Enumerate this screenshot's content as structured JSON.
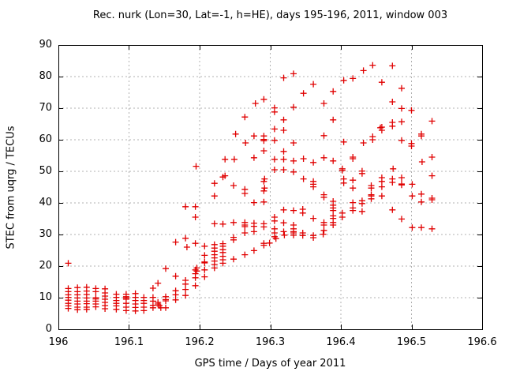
{
  "chart_data": {
    "type": "scatter",
    "title": "Rec. nurk (Lon=30, Lat=-1, h=HE), days 195-196, 2011, window 003",
    "xlabel": "GPS time / Days of year 2011",
    "ylabel": "STEC from uqrg / TECUs",
    "xlim": [
      196,
      196.6
    ],
    "ylim": [
      0,
      90
    ],
    "xticks": [
      196,
      196.1,
      196.2,
      196.3,
      196.4,
      196.5,
      196.6
    ],
    "xtick_labels": [
      "196",
      "196.1",
      "196.2",
      "196.3",
      "196.4",
      "196.5",
      "196.6"
    ],
    "yticks": [
      0,
      10,
      20,
      30,
      40,
      50,
      60,
      70,
      80,
      90
    ],
    "ytick_labels": [
      "0",
      "10",
      "20",
      "30",
      "40",
      "50",
      "60",
      "70",
      "80",
      "90"
    ],
    "grid": true,
    "legend": "none",
    "marker": {
      "shape": "plus",
      "size": 8,
      "color": "#e00000"
    },
    "colors": {
      "axis": "#000000",
      "grid": "#b0b0b0",
      "background": "#ffffff"
    },
    "points": [
      [
        196.014,
        20.9
      ],
      [
        196.014,
        12.9
      ],
      [
        196.014,
        11.9
      ],
      [
        196.014,
        10.9
      ],
      [
        196.014,
        10.1
      ],
      [
        196.014,
        9.2
      ],
      [
        196.014,
        8.2
      ],
      [
        196.014,
        7.4
      ],
      [
        196.014,
        6.6
      ],
      [
        196.027,
        13.2
      ],
      [
        196.027,
        11.9
      ],
      [
        196.027,
        10.9
      ],
      [
        196.027,
        9.9
      ],
      [
        196.027,
        8.9
      ],
      [
        196.027,
        8.0
      ],
      [
        196.027,
        7.0
      ],
      [
        196.027,
        6.2
      ],
      [
        196.04,
        13.3
      ],
      [
        196.04,
        12.1
      ],
      [
        196.04,
        11.0
      ],
      [
        196.04,
        9.9
      ],
      [
        196.04,
        8.9
      ],
      [
        196.04,
        8.1
      ],
      [
        196.04,
        7.0
      ],
      [
        196.04,
        6.3
      ],
      [
        196.053,
        12.9
      ],
      [
        196.053,
        11.9
      ],
      [
        196.053,
        10.0
      ],
      [
        196.053,
        9.6
      ],
      [
        196.053,
        8.9
      ],
      [
        196.053,
        8.0
      ],
      [
        196.053,
        7.1
      ],
      [
        196.066,
        12.8
      ],
      [
        196.066,
        11.5
      ],
      [
        196.066,
        10.5
      ],
      [
        196.066,
        9.5
      ],
      [
        196.066,
        8.5
      ],
      [
        196.066,
        7.5
      ],
      [
        196.066,
        6.5
      ],
      [
        196.082,
        11.1
      ],
      [
        196.082,
        10.1
      ],
      [
        196.082,
        9.1
      ],
      [
        196.082,
        8.2
      ],
      [
        196.082,
        7.4
      ],
      [
        196.082,
        6.3
      ],
      [
        196.096,
        11.1
      ],
      [
        196.096,
        10.3
      ],
      [
        196.096,
        9.9
      ],
      [
        196.096,
        9.5
      ],
      [
        196.096,
        8.2
      ],
      [
        196.096,
        7.0
      ],
      [
        196.096,
        5.9
      ],
      [
        196.109,
        11.3
      ],
      [
        196.109,
        10.1
      ],
      [
        196.109,
        9.1
      ],
      [
        196.109,
        8.0
      ],
      [
        196.109,
        6.9
      ],
      [
        196.109,
        5.8
      ],
      [
        196.121,
        10.1
      ],
      [
        196.121,
        9.1
      ],
      [
        196.121,
        8.2
      ],
      [
        196.121,
        7.0
      ],
      [
        196.121,
        5.9
      ],
      [
        196.134,
        13.0
      ],
      [
        196.134,
        10.1
      ],
      [
        196.134,
        8.9
      ],
      [
        196.134,
        7.6
      ],
      [
        196.134,
        6.8
      ],
      [
        196.141,
        14.6
      ],
      [
        196.141,
        8.5
      ],
      [
        196.141,
        8.0
      ],
      [
        196.143,
        7.5
      ],
      [
        196.145,
        6.8
      ],
      [
        196.152,
        19.2
      ],
      [
        196.152,
        10.3
      ],
      [
        196.152,
        9.4
      ],
      [
        196.152,
        9.0
      ],
      [
        196.152,
        6.8
      ],
      [
        196.166,
        27.6
      ],
      [
        196.166,
        16.8
      ],
      [
        196.166,
        12.2
      ],
      [
        196.166,
        10.9
      ],
      [
        196.166,
        9.3
      ],
      [
        196.18,
        38.8
      ],
      [
        196.18,
        28.8
      ],
      [
        196.18,
        15.5
      ],
      [
        196.18,
        14.3
      ],
      [
        196.18,
        12.6
      ],
      [
        196.18,
        10.7
      ],
      [
        196.182,
        26.0
      ],
      [
        196.194,
        38.8
      ],
      [
        196.194,
        35.5
      ],
      [
        196.194,
        27.2
      ],
      [
        196.194,
        18.8
      ],
      [
        196.194,
        17.6
      ],
      [
        196.194,
        16.3
      ],
      [
        196.194,
        13.8
      ],
      [
        196.195,
        51.6
      ],
      [
        196.196,
        19.4
      ],
      [
        196.196,
        18.4
      ],
      [
        196.207,
        26.3
      ],
      [
        196.207,
        23.4
      ],
      [
        196.207,
        21.3
      ],
      [
        196.207,
        21.0
      ],
      [
        196.207,
        18.8
      ],
      [
        196.207,
        16.6
      ],
      [
        196.221,
        46.2
      ],
      [
        196.221,
        42.2
      ],
      [
        196.221,
        33.4
      ],
      [
        196.221,
        26.8
      ],
      [
        196.221,
        25.7
      ],
      [
        196.221,
        24.7
      ],
      [
        196.221,
        23.6
      ],
      [
        196.221,
        22.6
      ],
      [
        196.221,
        21.6
      ],
      [
        196.221,
        20.5
      ],
      [
        196.221,
        19.4
      ],
      [
        196.233,
        48.2
      ],
      [
        196.233,
        33.3
      ],
      [
        196.233,
        27.1
      ],
      [
        196.233,
        26.3
      ],
      [
        196.233,
        25.2
      ],
      [
        196.233,
        24.3
      ],
      [
        196.233,
        23.1
      ],
      [
        196.233,
        22.0
      ],
      [
        196.233,
        20.9
      ],
      [
        196.236,
        53.8
      ],
      [
        196.236,
        48.6
      ],
      [
        196.248,
        45.5
      ],
      [
        196.248,
        33.8
      ],
      [
        196.248,
        29.1
      ],
      [
        196.248,
        28.3
      ],
      [
        196.248,
        22.2
      ],
      [
        196.249,
        53.8
      ],
      [
        196.251,
        61.8
      ],
      [
        196.264,
        67.2
      ],
      [
        196.264,
        44.3
      ],
      [
        196.264,
        43.0
      ],
      [
        196.264,
        33.8
      ],
      [
        196.264,
        33.0
      ],
      [
        196.264,
        32.5
      ],
      [
        196.264,
        30.5
      ],
      [
        196.264,
        23.6
      ],
      [
        196.265,
        59.0
      ],
      [
        196.277,
        61.2
      ],
      [
        196.277,
        54.3
      ],
      [
        196.277,
        40.1
      ],
      [
        196.277,
        33.6
      ],
      [
        196.277,
        32.6
      ],
      [
        196.277,
        30.9
      ],
      [
        196.277,
        24.9
      ],
      [
        196.279,
        71.5
      ],
      [
        196.291,
        72.8
      ],
      [
        196.291,
        61.2
      ],
      [
        196.291,
        60.1
      ],
      [
        196.291,
        59.7
      ],
      [
        196.291,
        56.5
      ],
      [
        196.292,
        47.6
      ],
      [
        196.292,
        44.7
      ],
      [
        196.291,
        46.8
      ],
      [
        196.291,
        43.8
      ],
      [
        196.291,
        40.3
      ],
      [
        196.291,
        33.4
      ],
      [
        196.291,
        32.4
      ],
      [
        196.291,
        27.2
      ],
      [
        196.291,
        26.6
      ],
      [
        196.299,
        27.3
      ],
      [
        196.306,
        70.1
      ],
      [
        196.306,
        68.8
      ],
      [
        196.306,
        63.4
      ],
      [
        196.306,
        59.8
      ],
      [
        196.306,
        53.8
      ],
      [
        196.306,
        50.5
      ],
      [
        196.306,
        35.5
      ],
      [
        196.306,
        34.3
      ],
      [
        196.306,
        31.8
      ],
      [
        196.306,
        30.5
      ],
      [
        196.306,
        29.3
      ],
      [
        196.308,
        28.7
      ],
      [
        196.319,
        79.6
      ],
      [
        196.319,
        66.3
      ],
      [
        196.319,
        63.0
      ],
      [
        196.319,
        56.3
      ],
      [
        196.319,
        53.8
      ],
      [
        196.319,
        50.5
      ],
      [
        196.319,
        37.8
      ],
      [
        196.319,
        33.7
      ],
      [
        196.319,
        30.9
      ],
      [
        196.32,
        29.8
      ],
      [
        196.333,
        80.9
      ],
      [
        196.333,
        70.3
      ],
      [
        196.333,
        59.0
      ],
      [
        196.333,
        53.3
      ],
      [
        196.333,
        49.8
      ],
      [
        196.333,
        37.6
      ],
      [
        196.333,
        33.0
      ],
      [
        196.333,
        31.8
      ],
      [
        196.333,
        30.9
      ],
      [
        196.333,
        30.5
      ],
      [
        196.333,
        29.8
      ],
      [
        196.347,
        74.7
      ],
      [
        196.347,
        54.0
      ],
      [
        196.347,
        47.6
      ],
      [
        196.346,
        38.0
      ],
      [
        196.346,
        36.8
      ],
      [
        196.346,
        30.5
      ],
      [
        196.346,
        29.7
      ],
      [
        196.361,
        77.6
      ],
      [
        196.361,
        52.8
      ],
      [
        196.361,
        46.8
      ],
      [
        196.361,
        45.9
      ],
      [
        196.361,
        45.1
      ],
      [
        196.361,
        35.1
      ],
      [
        196.361,
        29.7
      ],
      [
        196.361,
        29.0
      ],
      [
        196.375,
        30.1
      ],
      [
        196.376,
        71.5
      ],
      [
        196.376,
        61.3
      ],
      [
        196.376,
        54.3
      ],
      [
        196.376,
        42.6
      ],
      [
        196.376,
        41.8
      ],
      [
        196.376,
        33.8
      ],
      [
        196.376,
        33.0
      ],
      [
        196.376,
        31.3
      ],
      [
        196.389,
        75.3
      ],
      [
        196.389,
        66.3
      ],
      [
        196.389,
        53.3
      ],
      [
        196.389,
        40.5
      ],
      [
        196.389,
        39.3
      ],
      [
        196.389,
        38.4
      ],
      [
        196.389,
        37.6
      ],
      [
        196.389,
        35.9
      ],
      [
        196.389,
        35.1
      ],
      [
        196.389,
        33.8
      ],
      [
        196.389,
        33.0
      ],
      [
        196.402,
        50.8
      ],
      [
        196.402,
        50.3
      ],
      [
        196.402,
        36.8
      ],
      [
        196.402,
        35.5
      ],
      [
        196.404,
        78.8
      ],
      [
        196.404,
        59.3
      ],
      [
        196.404,
        47.6
      ],
      [
        196.404,
        46.3
      ],
      [
        196.417,
        79.4
      ],
      [
        196.417,
        54.5
      ],
      [
        196.417,
        54.0
      ],
      [
        196.417,
        47.2
      ],
      [
        196.417,
        44.7
      ],
      [
        196.417,
        40.1
      ],
      [
        196.417,
        38.4
      ],
      [
        196.417,
        37.6
      ],
      [
        196.43,
        50.1
      ],
      [
        196.43,
        49.3
      ],
      [
        196.43,
        40.7
      ],
      [
        196.43,
        39.8
      ],
      [
        196.43,
        37.3
      ],
      [
        196.432,
        81.9
      ],
      [
        196.432,
        59.0
      ],
      [
        196.443,
        45.5
      ],
      [
        196.443,
        44.7
      ],
      [
        196.443,
        42.6
      ],
      [
        196.443,
        42.2
      ],
      [
        196.443,
        41.3
      ],
      [
        196.445,
        83.6
      ],
      [
        196.445,
        61.0
      ],
      [
        196.445,
        60.0
      ],
      [
        196.456,
        63.8
      ],
      [
        196.458,
        78.2
      ],
      [
        196.458,
        64.0
      ],
      [
        196.458,
        63.0
      ],
      [
        196.458,
        48.0
      ],
      [
        196.458,
        46.8
      ],
      [
        196.458,
        45.1
      ],
      [
        196.458,
        42.2
      ],
      [
        196.473,
        83.4
      ],
      [
        196.473,
        72.0
      ],
      [
        196.473,
        65.5
      ],
      [
        196.473,
        64.3
      ],
      [
        196.473,
        47.6
      ],
      [
        196.473,
        46.5
      ],
      [
        196.473,
        37.8
      ],
      [
        196.474,
        50.8
      ],
      [
        196.486,
        76.3
      ],
      [
        196.486,
        69.9
      ],
      [
        196.486,
        65.7
      ],
      [
        196.486,
        59.8
      ],
      [
        196.486,
        48.0
      ],
      [
        196.486,
        46.0
      ],
      [
        196.486,
        45.7
      ],
      [
        196.486,
        34.9
      ],
      [
        196.5,
        69.3
      ],
      [
        196.5,
        58.8
      ],
      [
        196.5,
        58.0
      ],
      [
        196.501,
        45.9
      ],
      [
        196.501,
        42.2
      ],
      [
        196.501,
        32.2
      ],
      [
        196.514,
        61.8
      ],
      [
        196.514,
        61.2
      ],
      [
        196.515,
        53.0
      ],
      [
        196.514,
        42.8
      ],
      [
        196.514,
        40.3
      ],
      [
        196.514,
        32.2
      ],
      [
        196.529,
        65.9
      ],
      [
        196.529,
        54.5
      ],
      [
        196.529,
        48.6
      ],
      [
        196.529,
        41.5
      ],
      [
        196.529,
        41.0
      ],
      [
        196.529,
        31.8
      ]
    ]
  }
}
